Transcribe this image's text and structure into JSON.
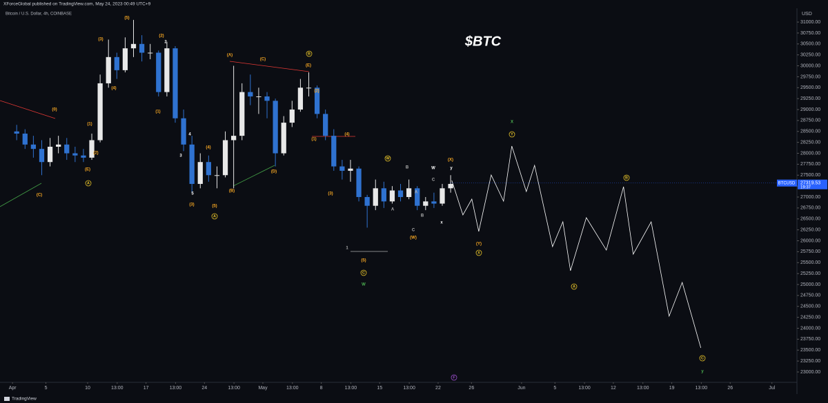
{
  "header": {
    "publisher": "XForceGlobal published on TradingView.com, May 24, 2023 00:49 UTC+9",
    "footer": "TradingView"
  },
  "chart_data": {
    "type": "candlestick",
    "title": "$BTC",
    "subtitle": "Bitcoin / U.S. Dollar, 4h, COINBASE",
    "y_axis_label": "USD",
    "up_color": "#e8e8e8",
    "down_color": "#2f72d0",
    "xlim": [
      -1.5,
      94
    ],
    "ylim": [
      22795,
      31300
    ],
    "xticks": [
      {
        "value": 0,
        "label": "Apr"
      },
      {
        "value": 4,
        "label": "5"
      },
      {
        "value": 9,
        "label": "10"
      },
      {
        "value": 12.54,
        "label": "13:00"
      },
      {
        "value": 16,
        "label": "17"
      },
      {
        "value": 19.54,
        "label": "13:00"
      },
      {
        "value": 23,
        "label": "24"
      },
      {
        "value": 26.54,
        "label": "13:00"
      },
      {
        "value": 30,
        "label": "May"
      },
      {
        "value": 33.54,
        "label": "13:00"
      },
      {
        "value": 37,
        "label": "8"
      },
      {
        "value": 40.54,
        "label": "13:00"
      },
      {
        "value": 44,
        "label": "15"
      },
      {
        "value": 47.54,
        "label": "13:00"
      },
      {
        "value": 51,
        "label": "22"
      },
      {
        "value": 55,
        "label": "26"
      },
      {
        "value": 61,
        "label": "Jun"
      },
      {
        "value": 65,
        "label": "5"
      },
      {
        "value": 68.54,
        "label": "13:00"
      },
      {
        "value": 72,
        "label": "12"
      },
      {
        "value": 75.54,
        "label": "13:00"
      },
      {
        "value": 79,
        "label": "19"
      },
      {
        "value": 82.54,
        "label": "13:00"
      },
      {
        "value": 86,
        "label": "26"
      },
      {
        "value": 91,
        "label": "Jul"
      }
    ],
    "yticks": [
      {
        "value": 23000,
        "label": "23000.00"
      },
      {
        "value": 23250,
        "label": "23250.00"
      },
      {
        "value": 23500,
        "label": "23500.00"
      },
      {
        "value": 23750,
        "label": "23750.00"
      },
      {
        "value": 24000,
        "label": "24000.00"
      },
      {
        "value": 24250,
        "label": "24250.00"
      },
      {
        "value": 24500,
        "label": "24500.00"
      },
      {
        "value": 24750,
        "label": "24750.00"
      },
      {
        "value": 25000,
        "label": "25000.00"
      },
      {
        "value": 25250,
        "label": "25250.00"
      },
      {
        "value": 25500,
        "label": "25500.00"
      },
      {
        "value": 25750,
        "label": "25750.00"
      },
      {
        "value": 26000,
        "label": "26000.00"
      },
      {
        "value": 26250,
        "label": "26250.00"
      },
      {
        "value": 26500,
        "label": "26500.00"
      },
      {
        "value": 26750,
        "label": "26750.00"
      },
      {
        "value": 27000,
        "label": "27000.00"
      },
      {
        "value": 27250,
        "label": "27250.00"
      },
      {
        "value": 27500,
        "label": "27500.00"
      },
      {
        "value": 27750,
        "label": "27750.00"
      },
      {
        "value": 28000,
        "label": "28000.00"
      },
      {
        "value": 28250,
        "label": "28250.00"
      },
      {
        "value": 28500,
        "label": "28500.00"
      },
      {
        "value": 28750,
        "label": "28750.00"
      },
      {
        "value": 29000,
        "label": "29000.00"
      },
      {
        "value": 29250,
        "label": "29250.00"
      },
      {
        "value": 29500,
        "label": "29500.00"
      },
      {
        "value": 29750,
        "label": "29750.00"
      },
      {
        "value": 30000,
        "label": "30000.00"
      },
      {
        "value": 30250,
        "label": "30250.00"
      },
      {
        "value": 30500,
        "label": "30500.00"
      },
      {
        "value": 30750,
        "label": "30750.00"
      },
      {
        "value": 31000,
        "label": "31000.00"
      }
    ],
    "x": [
      0.5,
      1.5,
      2.5,
      3.5,
      4.5,
      5.5,
      6.5,
      7.5,
      8.5,
      9.5,
      10.5,
      11.5,
      12.5,
      13.5,
      14.5,
      15.5,
      16.5,
      17.5,
      18.5,
      19.5,
      20.5,
      21.5,
      22.5,
      23.5,
      24.5,
      25.5,
      26.5,
      27.5,
      28.5,
      29.5,
      30.5,
      31.5,
      32.5,
      33.5,
      34.5,
      35.5,
      36.5,
      37.5,
      38.5,
      39.5,
      40.5,
      41.5,
      42.5,
      43.5,
      44.5,
      45.5,
      46.5,
      47.5,
      48.5,
      49.5,
      50.5,
      51.5,
      52.5
    ],
    "open": [
      28500,
      28450,
      28200,
      28100,
      27800,
      28150,
      28200,
      28000,
      27950,
      27900,
      28300,
      29600,
      30200,
      29900,
      30400,
      30500,
      30300,
      30300,
      29400,
      30400,
      28800,
      28200,
      27300,
      27800,
      27500,
      27500,
      28300,
      28400,
      29400,
      29300,
      29300,
      29200,
      28000,
      28700,
      29000,
      29500,
      29500,
      28900,
      28400,
      27700,
      27600,
      27650,
      27000,
      26800,
      27200,
      26900,
      27150,
      27000,
      27200,
      26800,
      26900,
      26850,
      27200
    ],
    "high": [
      28650,
      28550,
      28400,
      28300,
      28350,
      28400,
      28350,
      28150,
      28100,
      28450,
      29800,
      30600,
      30300,
      30650,
      31050,
      30700,
      30500,
      30350,
      30550,
      30450,
      29000,
      28400,
      28000,
      27950,
      27700,
      28500,
      30000,
      29600,
      29800,
      29500,
      29400,
      29250,
      28850,
      29200,
      29700,
      29850,
      29550,
      29000,
      28550,
      27850,
      27850,
      27700,
      27050,
      27400,
      27350,
      27250,
      27300,
      27400,
      27250,
      27000,
      27100,
      27300,
      27500
    ],
    "low": [
      28300,
      28100,
      27900,
      27500,
      27700,
      28000,
      27850,
      27800,
      27800,
      27850,
      28250,
      29500,
      29700,
      29850,
      30200,
      30100,
      30150,
      29300,
      29300,
      28700,
      28050,
      27100,
      27200,
      27350,
      27200,
      27450,
      27200,
      28300,
      29100,
      28900,
      28800,
      27700,
      27950,
      28600,
      28950,
      29300,
      28800,
      28300,
      27600,
      27400,
      27350,
      26900,
      26300,
      26700,
      26750,
      26850,
      26900,
      26950,
      26700,
      26700,
      26750,
      26800,
      27100
    ],
    "close": [
      28450,
      28200,
      28100,
      27800,
      28150,
      28200,
      28000,
      27950,
      27900,
      28300,
      29600,
      30200,
      29900,
      30400,
      30500,
      30300,
      30300,
      29400,
      30400,
      28800,
      28200,
      27300,
      27800,
      27500,
      27500,
      28300,
      28400,
      29400,
      29300,
      29300,
      29200,
      28000,
      28700,
      29000,
      29500,
      29500,
      28900,
      28400,
      27700,
      27600,
      27650,
      27000,
      26800,
      27200,
      26900,
      27150,
      27000,
      27200,
      26800,
      26900,
      26850,
      27200,
      27300
    ],
    "projection": {
      "color": "#ffffff",
      "x": [
        52.64,
        53.97,
        55.04,
        55.87,
        57.36,
        58.84,
        59.83,
        61.57,
        62.56,
        64.71,
        65.95,
        66.86,
        68.76,
        71.16,
        73.22,
        74.38,
        76.53,
        78.68,
        80.25,
        82.48
      ],
      "values": [
        27378,
        26591,
        26953,
        26213,
        27504,
        26906,
        28165,
        27126,
        27724,
        25866,
        26433,
        25315,
        26528,
        25787,
        27236,
        25693,
        26433,
        24276,
        25047,
        23551
      ]
    },
    "last_price": {
      "symbol": "BTCUSD",
      "value": 27319.53,
      "countdown": "19:37",
      "color": "#2962ff"
    },
    "annotations": [
      {
        "text": "(3)",
        "color": "#f5a623"
      },
      {
        "text": "(5)",
        "color": "#f5a623"
      },
      {
        "text": "(2)",
        "color": "#f5a623"
      },
      {
        "text": "2",
        "color": "#ffffff"
      },
      {
        "text": "(4)",
        "color": "#f5a623"
      },
      {
        "text": "(1)",
        "color": "#f5a623"
      },
      {
        "text": "(0)",
        "color": "#f5a623"
      },
      {
        "text": "(2)",
        "color": "#f5a623"
      },
      {
        "text": "(E)",
        "color": "#f5a623"
      },
      {
        "text": "(C)",
        "color": "#f5a623"
      },
      {
        "text": "(1)",
        "color": "#f5a623"
      },
      {
        "text": "4",
        "color": "#ffffff"
      },
      {
        "text": "3",
        "color": "#ffffff"
      },
      {
        "text": "(4)",
        "color": "#f5a623"
      },
      {
        "text": "5",
        "color": "#ffffff"
      },
      {
        "text": "(3)",
        "color": "#f5a623"
      },
      {
        "text": "(5)",
        "color": "#f5a623"
      },
      {
        "text": "(A)",
        "color": "#f5a623"
      },
      {
        "text": "(C)",
        "color": "#f5a623"
      },
      {
        "text": "(E)",
        "color": "#f5a623"
      },
      {
        "text": "(B)",
        "color": "#f5a623"
      },
      {
        "text": "(D)",
        "color": "#f5a623"
      },
      {
        "text": "(1)",
        "color": "#f5a623"
      },
      {
        "text": "(2)",
        "color": "#f5a623"
      },
      {
        "text": "(4)",
        "color": "#f5a623"
      },
      {
        "text": "(3)",
        "color": "#f5a623"
      },
      {
        "text": "(5)",
        "color": "#f5a623"
      },
      {
        "text": "(X)",
        "color": "#f5a623"
      },
      {
        "text": "(Y)",
        "color": "#f5a623"
      },
      {
        "text": "(W)",
        "color": "#f5a623"
      },
      {
        "text": "B",
        "color": "#e6c229",
        "circled": true
      },
      {
        "text": "A",
        "color": "#e6c229",
        "circled": true
      },
      {
        "text": "A",
        "color": "#e6c229",
        "circled": true
      },
      {
        "text": "W",
        "color": "#e6c229",
        "circled": true
      },
      {
        "text": "Y",
        "color": "#e6c229",
        "circled": true
      },
      {
        "text": "C",
        "color": "#e6c229",
        "circled": true
      },
      {
        "text": "X",
        "color": "#e6c229",
        "circled": true
      },
      {
        "text": "B",
        "color": "#e6c229",
        "circled": true
      },
      {
        "text": "A",
        "color": "#e6c229",
        "circled": true
      },
      {
        "text": "C",
        "color": "#e6c229",
        "circled": true
      },
      {
        "text": "X",
        "color": "#4caf50"
      },
      {
        "text": "W",
        "color": "#4caf50"
      },
      {
        "text": "y",
        "color": "#4caf50"
      },
      {
        "text": "F",
        "color": "#9c4dcc",
        "circled": true
      },
      {
        "text": "B",
        "color": "#b0b0b0"
      },
      {
        "text": "W",
        "color": "#ffffff"
      },
      {
        "text": "y",
        "color": "#ffffff"
      },
      {
        "text": "A",
        "color": "#b0b0b0"
      },
      {
        "text": "C",
        "color": "#b0b0b0"
      },
      {
        "text": "A",
        "color": "#b0b0b0"
      },
      {
        "text": "B",
        "color": "#b0b0b0"
      },
      {
        "text": "C",
        "color": "#b0b0b0"
      },
      {
        "text": "x",
        "color": "#ffffff"
      },
      {
        "text": "1",
        "color": "#b0b0b0"
      }
    ]
  }
}
